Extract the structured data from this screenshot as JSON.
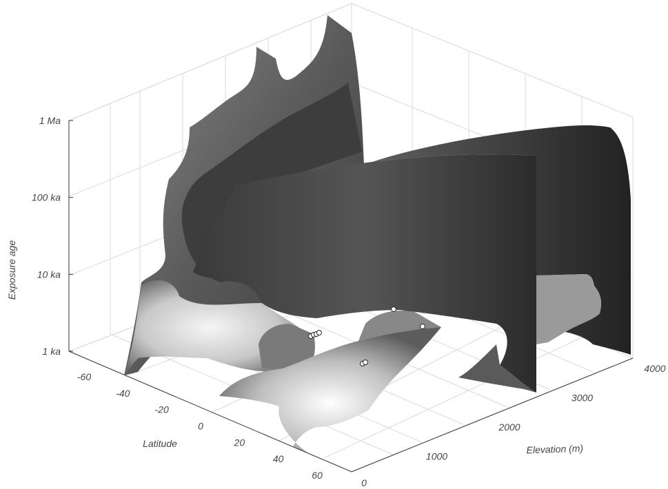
{
  "chart_data": {
    "type": "surface",
    "axes": {
      "x": {
        "label": "Latitude",
        "ticks": [
          -60,
          -40,
          -20,
          0,
          20,
          40,
          60
        ],
        "tick_labels": [
          "-60",
          "-40",
          "-20",
          "0",
          "20",
          "40",
          "60"
        ]
      },
      "y": {
        "label": "Elevation (m)",
        "ticks": [
          0,
          1000,
          2000,
          3000,
          4000
        ],
        "tick_labels": [
          "0",
          "1000",
          "2000",
          "3000",
          "4000"
        ]
      },
      "z": {
        "label": "Exposure age",
        "scale": "log",
        "tick_labels": [
          "1 ka",
          "10 ka",
          "100 ka",
          "1 Ma"
        ]
      }
    },
    "grid": true,
    "colors": {
      "surface_light": "#f2f2f2",
      "surface_dark": "#2a2a2a",
      "grid": "#d9d9d9",
      "points": "#ffffff"
    }
  }
}
